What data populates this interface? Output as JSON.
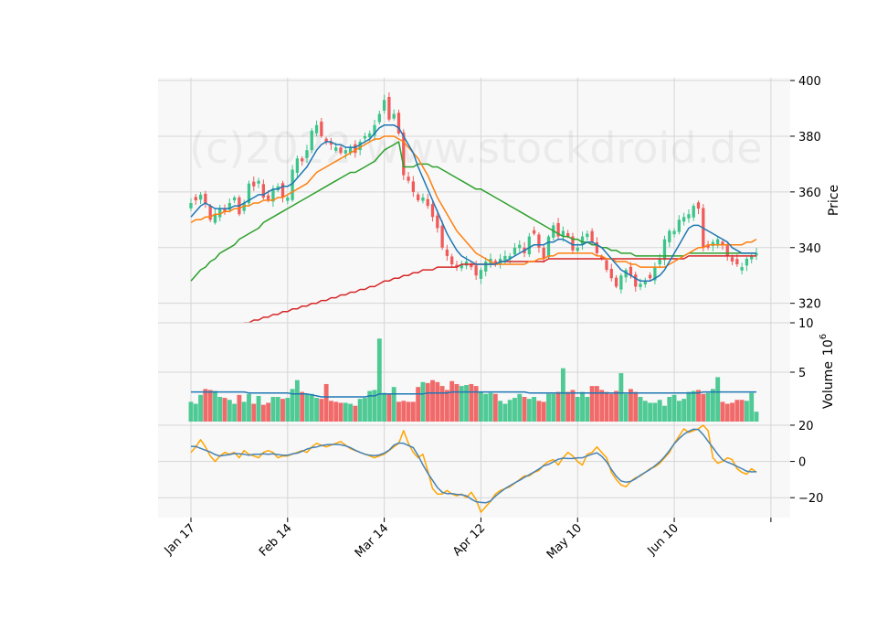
{
  "chart_data": [
    {
      "type": "candlestick",
      "panel": "price",
      "ylabel": "Price",
      "ylim": [
        313,
        401
      ],
      "yticks": [
        320,
        340,
        360,
        380,
        400
      ],
      "xticks": [
        {
          "i": 0,
          "label": "Jan 17"
        },
        {
          "i": 20,
          "label": "Feb 14"
        },
        {
          "i": 40,
          "label": "Mar 14"
        },
        {
          "i": 60,
          "label": "Apr 12"
        },
        {
          "i": 80,
          "label": "May 10"
        },
        {
          "i": 100,
          "label": "Jun 10"
        },
        {
          "i": 120,
          "label": ""
        }
      ],
      "watermark": "(c)2022 www.stockdroid.de",
      "grid": true,
      "up_color": "#3cc48a",
      "down_color": "#f05a5a",
      "close": [
        356,
        357,
        359,
        356,
        350,
        352,
        354,
        353,
        356,
        358,
        352,
        356,
        363,
        362,
        364,
        358,
        357,
        361,
        362,
        358,
        358,
        368,
        372,
        371,
        375,
        382,
        384,
        380,
        378,
        377,
        376,
        374,
        375,
        376,
        374,
        378,
        380,
        381,
        384,
        388,
        393,
        386,
        388,
        381,
        366,
        364,
        360,
        357,
        358,
        355,
        351,
        347,
        340,
        337,
        334,
        333,
        334,
        335,
        333,
        330,
        332,
        335,
        336,
        334,
        336,
        337,
        337,
        340,
        341,
        338,
        344,
        345,
        340,
        336,
        344,
        348,
        344,
        346,
        344,
        339,
        340,
        344,
        345,
        342,
        338,
        336,
        332,
        329,
        326,
        330,
        332,
        330,
        326,
        327,
        328,
        329,
        333,
        336,
        343,
        346,
        346,
        350,
        351,
        352,
        355,
        354,
        340,
        340,
        342,
        343,
        341,
        337,
        335,
        334,
        333,
        336,
        337,
        338
      ],
      "sma_blue": [
        351,
        353,
        355,
        356,
        355,
        354,
        354,
        354,
        354,
        355,
        355,
        356,
        357,
        358,
        359,
        359,
        360,
        361,
        361,
        362,
        362,
        363,
        365,
        367,
        369,
        372,
        375,
        377,
        378,
        378,
        377,
        377,
        376,
        376,
        376,
        377,
        378,
        379,
        381,
        383,
        384,
        384,
        384,
        383,
        380,
        377,
        374,
        369,
        365,
        361,
        357,
        353,
        349,
        345,
        342,
        339,
        337,
        336,
        335,
        334,
        334,
        334,
        334,
        334,
        335,
        335,
        336,
        337,
        338,
        339,
        340,
        341,
        341,
        341,
        342,
        342,
        343,
        343,
        342,
        341,
        341,
        341,
        342,
        342,
        341,
        340,
        338,
        336,
        334,
        332,
        331,
        330,
        329,
        328,
        328,
        328,
        329,
        330,
        332,
        335,
        338,
        341,
        344,
        347,
        348,
        348,
        347,
        346,
        345,
        344,
        343,
        342,
        340,
        339,
        338,
        338,
        338,
        338
      ],
      "sma_orange": [
        349,
        350,
        350,
        351,
        351,
        352,
        352,
        353,
        353,
        354,
        354,
        355,
        355,
        356,
        356,
        357,
        357,
        357,
        358,
        358,
        359,
        360,
        361,
        362,
        363,
        365,
        367,
        368,
        369,
        370,
        371,
        372,
        373,
        374,
        375,
        376,
        377,
        378,
        379,
        379,
        380,
        380,
        380,
        379,
        378,
        376,
        374,
        372,
        369,
        366,
        362,
        358,
        355,
        352,
        349,
        346,
        344,
        342,
        340,
        338,
        337,
        336,
        335,
        334,
        334,
        334,
        334,
        334,
        334,
        334,
        335,
        335,
        336,
        336,
        337,
        337,
        338,
        338,
        338,
        338,
        338,
        338,
        338,
        338,
        337,
        337,
        336,
        336,
        335,
        335,
        335,
        334,
        334,
        333,
        333,
        333,
        333,
        333,
        333,
        334,
        335,
        336,
        337,
        338,
        339,
        340,
        340,
        341,
        341,
        341,
        341,
        341,
        341,
        341,
        341,
        342,
        342,
        343
      ],
      "sma_green": [
        328,
        330,
        332,
        333,
        335,
        336,
        338,
        339,
        340,
        341,
        343,
        344,
        345,
        346,
        347,
        349,
        350,
        351,
        352,
        353,
        354,
        355,
        356,
        357,
        358,
        359,
        360,
        361,
        362,
        363,
        364,
        365,
        366,
        367,
        367,
        368,
        369,
        370,
        371,
        373,
        375,
        376,
        377,
        378,
        369,
        369,
        369,
        370,
        370,
        370,
        369,
        369,
        368,
        367,
        366,
        365,
        364,
        363,
        362,
        361,
        361,
        360,
        359,
        358,
        357,
        356,
        355,
        354,
        353,
        352,
        351,
        350,
        349,
        348,
        347,
        346,
        345,
        344,
        344,
        343,
        343,
        342,
        342,
        341,
        341,
        340,
        340,
        339,
        339,
        338,
        338,
        338,
        337,
        337,
        337,
        337,
        337,
        337,
        337,
        337,
        337,
        337,
        337,
        338,
        338,
        338,
        338,
        338,
        338,
        338,
        338,
        338,
        338,
        338,
        338,
        338,
        338,
        338
      ],
      "sma_red": [
        307,
        308,
        308,
        309,
        309,
        310,
        310,
        311,
        311,
        312,
        312,
        313,
        313,
        314,
        314,
        315,
        315,
        316,
        316,
        317,
        317,
        318,
        318,
        319,
        319,
        320,
        320,
        321,
        321,
        322,
        322,
        323,
        323,
        324,
        324,
        325,
        325,
        326,
        326,
        327,
        328,
        328,
        329,
        329,
        330,
        330,
        331,
        331,
        332,
        332,
        332,
        333,
        333,
        333,
        333,
        333,
        334,
        334,
        334,
        334,
        334,
        334,
        334,
        334,
        335,
        335,
        335,
        335,
        335,
        335,
        335,
        335,
        335,
        335,
        336,
        336,
        336,
        336,
        336,
        336,
        336,
        336,
        336,
        336,
        336,
        336,
        336,
        336,
        336,
        336,
        336,
        336,
        336,
        336,
        336,
        336,
        336,
        336,
        336,
        336,
        336,
        336,
        336,
        337,
        337,
        337,
        337,
        337,
        337,
        337,
        337,
        337,
        337,
        337,
        337,
        337,
        337,
        337
      ]
    },
    {
      "type": "bar",
      "panel": "volume",
      "ylabel": "Volume",
      "ylabel_exponent": "6",
      "unit": "millions",
      "ylim": [
        0,
        10
      ],
      "yticks": [
        5,
        10
      ],
      "volume": [
        2.0,
        1.8,
        2.7,
        3.3,
        3.2,
        3.1,
        2.5,
        2.4,
        2.2,
        1.8,
        2.7,
        2.0,
        2.8,
        1.8,
        2.6,
        1.7,
        1.9,
        2.5,
        2.5,
        2.3,
        2.4,
        3.3,
        4.2,
        3.0,
        2.8,
        2.8,
        2.4,
        2.3,
        3.8,
        2.1,
        2.0,
        1.9,
        1.9,
        1.8,
        1.6,
        2.3,
        2.4,
        3.1,
        3.2,
        8.4,
        2.9,
        2.8,
        3.5,
        2.0,
        2.1,
        2.0,
        2.0,
        3.5,
        4.0,
        3.9,
        4.2,
        4.0,
        3.6,
        3.2,
        4.1,
        3.8,
        3.6,
        3.7,
        3.8,
        3.6,
        3.0,
        2.8,
        2.9,
        2.8,
        2.1,
        1.8,
        2.2,
        2.4,
        2.8,
        2.5,
        2.3,
        2.5,
        2.1,
        2.0,
        2.8,
        2.8,
        3.0,
        5.4,
        3.0,
        3.2,
        2.5,
        3.0,
        2.5,
        3.6,
        3.6,
        3.2,
        3.0,
        2.8,
        3.1,
        4.9,
        2.8,
        3.3,
        3.0,
        2.5,
        2.1,
        1.9,
        1.9,
        2.2,
        1.6,
        2.5,
        2.7,
        2.1,
        2.3,
        3.0,
        3.1,
        3.2,
        2.8,
        2.9,
        3.3,
        4.5,
        2.0,
        1.8,
        1.9,
        2.2,
        2.2,
        2.1,
        2.9,
        1.0
      ],
      "volume_avg": [
        3.0,
        3.0,
        3.0,
        3.0,
        3.0,
        3.0,
        3.0,
        3.0,
        3.0,
        3.0,
        3.0,
        3.0,
        2.9,
        2.9,
        2.9,
        2.9,
        2.9,
        2.9,
        2.9,
        2.9,
        2.9,
        2.8,
        2.8,
        2.8,
        2.8,
        2.7,
        2.6,
        2.5,
        2.5,
        2.5,
        2.5,
        2.5,
        2.5,
        2.5,
        2.5,
        2.5,
        2.5,
        2.6,
        2.6,
        2.8,
        2.8,
        2.8,
        2.8,
        2.8,
        2.8,
        2.8,
        2.8,
        2.8,
        2.8,
        2.9,
        2.9,
        2.9,
        2.9,
        2.9,
        3.0,
        3.0,
        3.0,
        3.0,
        3.0,
        3.0,
        3.0,
        3.0,
        3.0,
        3.0,
        3.0,
        3.0,
        3.0,
        3.0,
        3.0,
        3.0,
        2.9,
        2.9,
        2.9,
        2.9,
        2.9,
        2.9,
        2.9,
        2.9,
        2.9,
        2.9,
        2.9,
        2.9,
        2.9,
        2.9,
        2.9,
        2.9,
        2.9,
        2.9,
        2.9,
        2.9,
        2.9,
        2.9,
        2.9,
        2.9,
        2.9,
        2.9,
        2.9,
        2.9,
        2.9,
        2.9,
        2.9,
        2.9,
        2.9,
        2.9,
        2.9,
        2.9,
        3.0,
        3.0,
        3.0,
        3.0,
        3.0,
        3.0,
        3.0,
        3.0,
        3.0,
        3.0,
        3.0,
        3.0
      ]
    },
    {
      "type": "line",
      "panel": "oscillator",
      "ylim": [
        -31,
        22
      ],
      "yticks": [
        -20,
        0,
        20
      ],
      "series_orange": [
        5,
        8,
        12,
        8,
        3,
        0,
        3,
        5,
        4,
        5,
        2,
        6,
        4,
        3,
        2,
        5,
        6,
        5,
        2,
        3,
        3,
        4,
        5,
        6,
        5,
        8,
        10,
        9,
        8,
        9,
        10,
        11,
        9,
        7,
        6,
        5,
        4,
        3,
        2,
        3,
        4,
        6,
        8,
        10,
        17,
        10,
        5,
        2,
        4,
        -5,
        -15,
        -18,
        -18,
        -16,
        -18,
        -19,
        -18,
        -20,
        -17,
        -21,
        -28,
        -25,
        -22,
        -18,
        -16,
        -15,
        -14,
        -12,
        -10,
        -8,
        -8,
        -6,
        -5,
        -2,
        0,
        1,
        -2,
        2,
        5,
        3,
        0,
        -2,
        4,
        5,
        8,
        5,
        2,
        -6,
        -10,
        -13,
        -14,
        -11,
        -9,
        -8,
        -6,
        -4,
        -3,
        -1,
        2,
        5,
        10,
        14,
        18,
        16,
        17,
        18,
        20,
        17,
        2,
        -1,
        0,
        2,
        1,
        -4,
        -6,
        -7,
        -4,
        -6
      ]
    }
  ]
}
